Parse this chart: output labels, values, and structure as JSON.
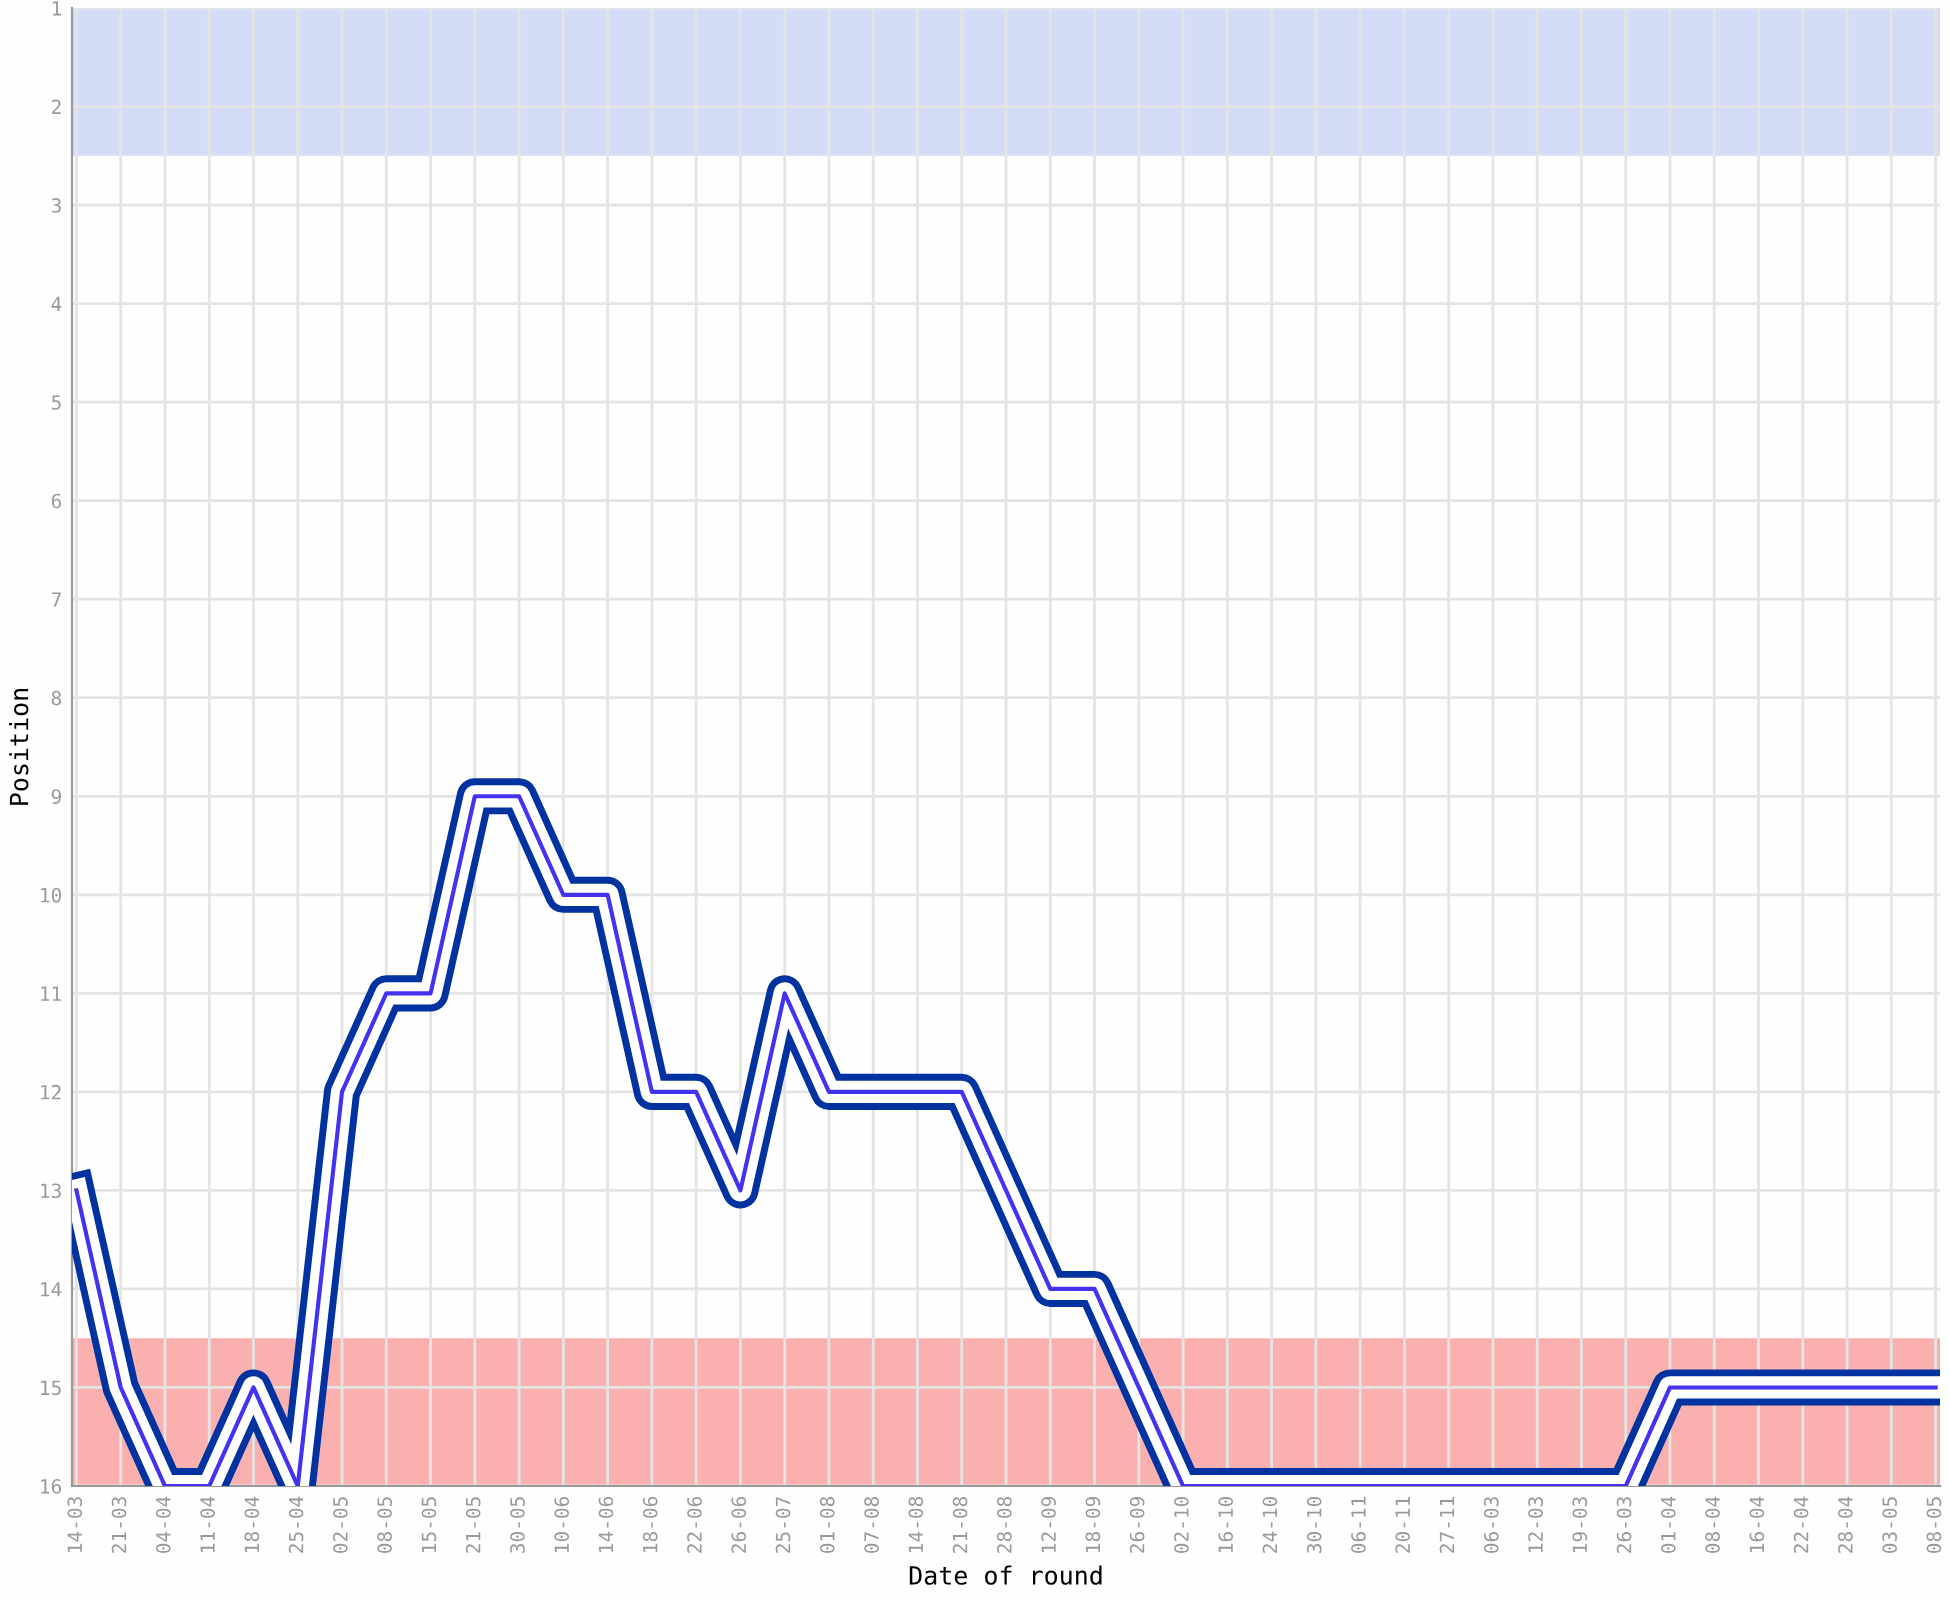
{
  "chart_data": {
    "type": "line",
    "xlabel": "Date of round",
    "ylabel": "Position",
    "categories": [
      "14-03",
      "21-03",
      "04-04",
      "11-04",
      "18-04",
      "25-04",
      "02-05",
      "08-05",
      "15-05",
      "21-05",
      "30-05",
      "10-06",
      "14-06",
      "18-06",
      "22-06",
      "26-06",
      "25-07",
      "01-08",
      "07-08",
      "14-08",
      "21-08",
      "28-08",
      "12-09",
      "18-09",
      "26-09",
      "02-10",
      "16-10",
      "24-10",
      "30-10",
      "06-11",
      "20-11",
      "27-11",
      "06-03",
      "12-03",
      "19-03",
      "26-03",
      "01-04",
      "08-04",
      "16-04",
      "22-04",
      "28-04",
      "03-05",
      "08-05"
    ],
    "series": [
      {
        "color": "#0033a0",
        "values": [
          13,
          15,
          16,
          16,
          15,
          16,
          12,
          11,
          11,
          9,
          9,
          10,
          10,
          12,
          12,
          13,
          11,
          12,
          12,
          12,
          12,
          13,
          14,
          14,
          15,
          16,
          16,
          16,
          16,
          16,
          16,
          16,
          16,
          16,
          16,
          16,
          15,
          15,
          15,
          15,
          15,
          15,
          15
        ]
      }
    ],
    "ylim": [
      16,
      1
    ],
    "yticks": [
      1,
      2,
      3,
      4,
      5,
      6,
      7,
      8,
      9,
      10,
      11,
      12,
      13,
      14,
      15,
      16
    ],
    "bands": [
      {
        "axis": "y",
        "from": 1,
        "to": 2.5,
        "color": "#d5dcf8"
      },
      {
        "axis": "y",
        "from": 14.5,
        "to": 16,
        "color": "#fbb0b0"
      }
    ],
    "grid": true,
    "marker": "none",
    "line_style": "solid"
  }
}
